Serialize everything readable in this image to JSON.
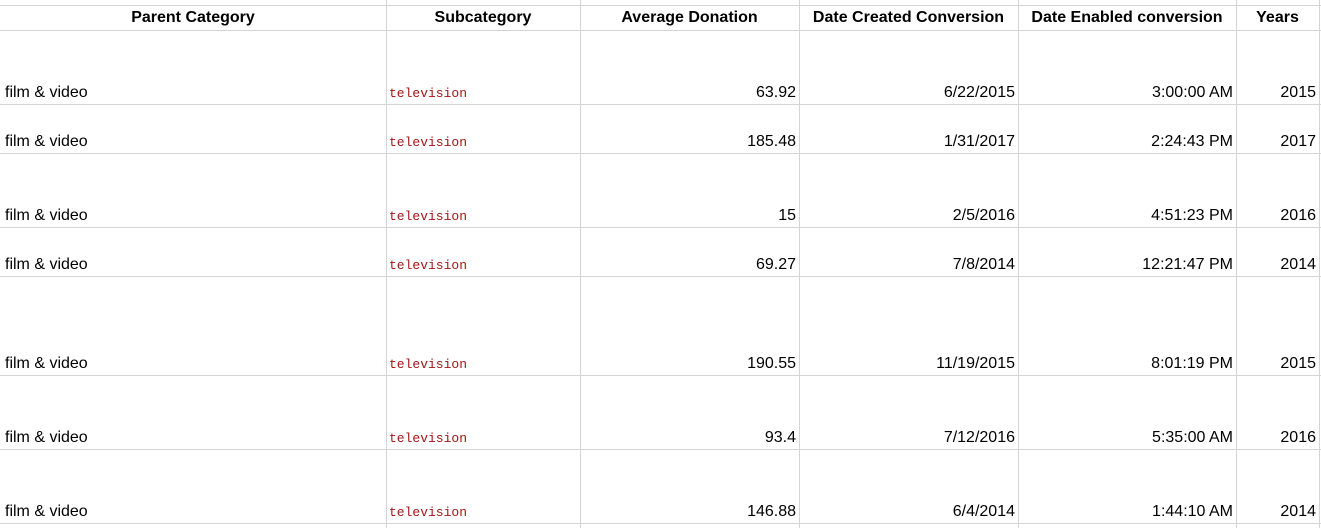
{
  "headers": [
    "Parent Category",
    "Subcategory",
    "Average Donation",
    "Date Created Conversion",
    "Date Enabled conversion",
    "Years"
  ],
  "rows": [
    {
      "parent": "film & video",
      "sub": "television",
      "avg": "63.92",
      "created": "6/22/2015",
      "enabled": "3:00:00 AM",
      "year": "2015"
    },
    {
      "parent": "film & video",
      "sub": "television",
      "avg": "185.48",
      "created": "1/31/2017",
      "enabled": "2:24:43 PM",
      "year": "2017"
    },
    {
      "parent": "film & video",
      "sub": "television",
      "avg": "15",
      "created": "2/5/2016",
      "enabled": "4:51:23 PM",
      "year": "2016"
    },
    {
      "parent": "film & video",
      "sub": "television",
      "avg": "69.27",
      "created": "7/8/2014",
      "enabled": "12:21:47 PM",
      "year": "2014"
    },
    {
      "parent": "film & video",
      "sub": "television",
      "avg": "190.55",
      "created": "11/19/2015",
      "enabled": "8:01:19 PM",
      "year": "2015"
    },
    {
      "parent": "film & video",
      "sub": "television",
      "avg": "93.4",
      "created": "7/12/2016",
      "enabled": "5:35:00 AM",
      "year": "2016"
    },
    {
      "parent": "film & video",
      "sub": "television",
      "avg": "146.88",
      "created": "6/4/2014",
      "enabled": "1:44:10 AM",
      "year": "2014"
    }
  ]
}
